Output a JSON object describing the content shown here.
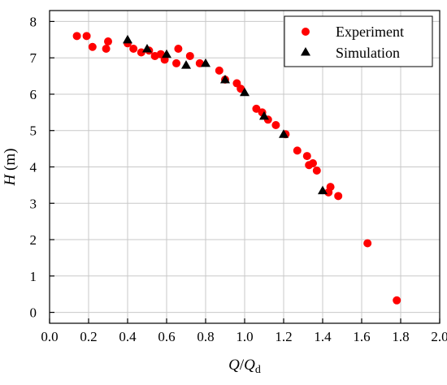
{
  "chart_data": {
    "type": "scatter",
    "xlabel_main": "Q",
    "xlabel_sep": "/",
    "xlabel_denom": "Q",
    "xlabel_sub": "d",
    "ylabel_main": "H",
    "ylabel_unit": " (m)",
    "xlim": [
      0.0,
      2.0
    ],
    "ylim": [
      -0.3,
      8.3
    ],
    "xticks": [
      0.0,
      0.2,
      0.4,
      0.6,
      0.8,
      1.0,
      1.2,
      1.4,
      1.6,
      1.8,
      2.0
    ],
    "xtick_labels": [
      "0.0",
      "0.2",
      "0.4",
      "0.6",
      "0.8",
      "1.0",
      "1.2",
      "1.4",
      "1.6",
      "1.8",
      "2.0"
    ],
    "yticks": [
      0,
      1,
      2,
      3,
      4,
      5,
      6,
      7,
      8
    ],
    "ytick_labels": [
      "0",
      "1",
      "2",
      "3",
      "4",
      "5",
      "6",
      "7",
      "8"
    ],
    "grid": true,
    "legend_position": "top-right",
    "series": [
      {
        "name": "Experiment",
        "marker": "circle",
        "color": "#ff0000",
        "x": [
          0.14,
          0.19,
          0.22,
          0.29,
          0.3,
          0.4,
          0.43,
          0.47,
          0.51,
          0.54,
          0.57,
          0.59,
          0.65,
          0.66,
          0.72,
          0.77,
          0.87,
          0.9,
          0.96,
          0.98,
          1.06,
          1.09,
          1.12,
          1.16,
          1.21,
          1.27,
          1.32,
          1.33,
          1.35,
          1.37,
          1.43,
          1.44,
          1.48,
          1.63,
          1.78
        ],
        "y": [
          7.6,
          7.6,
          7.3,
          7.25,
          7.45,
          7.4,
          7.25,
          7.15,
          7.2,
          7.05,
          7.1,
          6.95,
          6.85,
          7.25,
          7.05,
          6.85,
          6.65,
          6.4,
          6.3,
          6.15,
          5.6,
          5.5,
          5.3,
          5.15,
          4.9,
          4.45,
          4.3,
          4.05,
          4.1,
          3.9,
          3.3,
          3.45,
          3.2,
          1.9,
          0.33
        ]
      },
      {
        "name": "Simulation",
        "marker": "triangle",
        "color": "#000000",
        "x": [
          0.4,
          0.5,
          0.6,
          0.7,
          0.8,
          0.9,
          1.0,
          1.1,
          1.2,
          1.4
        ],
        "y": [
          7.5,
          7.25,
          7.1,
          6.8,
          6.85,
          6.4,
          6.05,
          5.4,
          4.9,
          3.35
        ]
      }
    ]
  }
}
